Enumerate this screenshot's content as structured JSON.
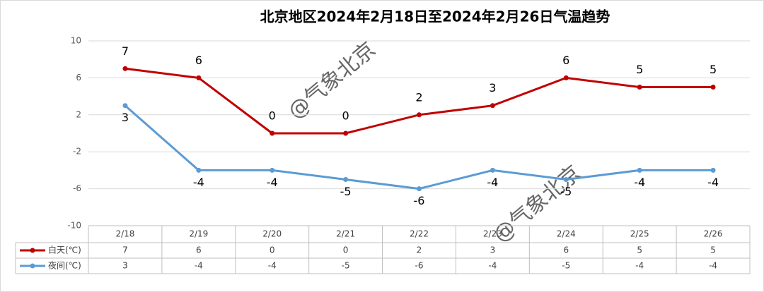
{
  "chart_data": {
    "type": "line",
    "title": "北京地区2024年2月18日至2024年2月26日气温趋势",
    "categories": [
      "2/18",
      "2/19",
      "2/20",
      "2/21",
      "2/22",
      "2/23",
      "2/24",
      "2/25",
      "2/26"
    ],
    "series": [
      {
        "name": "白天(℃)",
        "color": "#c00000",
        "values": [
          7,
          6,
          0,
          0,
          2,
          3,
          6,
          5,
          5
        ]
      },
      {
        "name": "夜间(℃)",
        "color": "#5b9bd5",
        "values": [
          3,
          -4,
          -4,
          -5,
          -6,
          -4,
          -5,
          -4,
          -4
        ]
      }
    ],
    "ylim": [
      -10,
      10
    ],
    "yticks": [
      -10,
      -6,
      -2,
      2,
      6,
      10
    ],
    "grid": true,
    "watermark": "@气象北京"
  }
}
